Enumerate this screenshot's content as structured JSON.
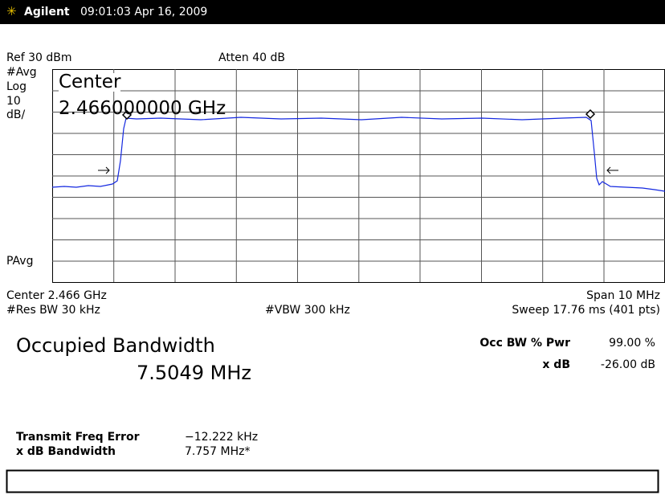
{
  "header": {
    "brand": "Agilent",
    "timestamp": "09:01:03 Apr 16, 2009"
  },
  "display": {
    "ref_level": "Ref 30 dBm",
    "attenuation": "Atten 40 dB",
    "avg": "#Avg",
    "scale_type": "Log",
    "scale_value": "10",
    "scale_unit": "dB/",
    "avg_mode": "PAvg",
    "center_label": "Center",
    "center_value": "2.466000000 GHz"
  },
  "footer": {
    "center": "Center 2.466 GHz",
    "span": "Span 10 MHz",
    "res_bw": "#Res BW 30 kHz",
    "vbw": "#VBW 300 kHz",
    "sweep": "Sweep 17.76 ms (401 pts)"
  },
  "results": {
    "title": "Occupied Bandwidth",
    "value": "7.5049 MHz",
    "occ_bw_label": "Occ BW % Pwr",
    "occ_bw_value": "99.00 %",
    "xdb_label": "x dB",
    "xdb_value": "-26.00 dB",
    "tfe_label": "Transmit Freq Error",
    "tfe_value": "−12.222 kHz",
    "xdb_bw_label": "x dB Bandwidth",
    "xdb_bw_value": "7.757 MHz*"
  }
}
